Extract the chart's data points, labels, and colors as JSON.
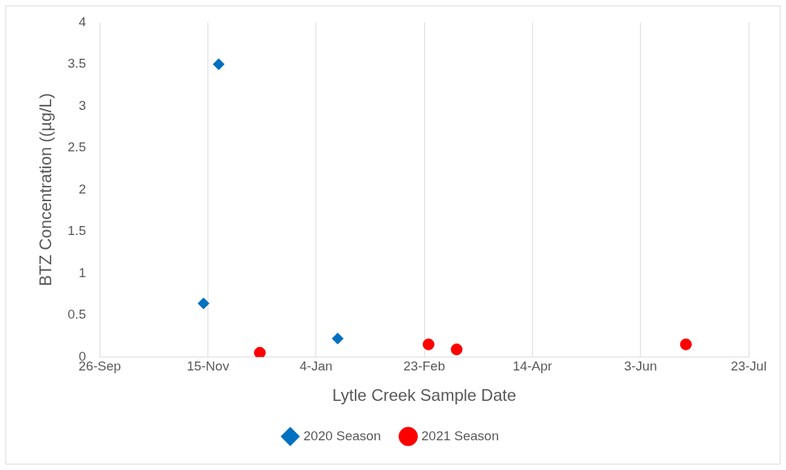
{
  "chart_data": {
    "type": "scatter",
    "xlabel": "Lytle Creek Sample Date",
    "ylabel": "BTZ Concentration ((µg/L)",
    "xlim": [
      "2020-09-26",
      "2021-07-23"
    ],
    "xticks": [
      {
        "value": "2020-09-26",
        "label": "26-Sep"
      },
      {
        "value": "2020-11-15",
        "label": "15-Nov"
      },
      {
        "value": "2021-01-04",
        "label": "4-Jan"
      },
      {
        "value": "2021-02-23",
        "label": "23-Feb"
      },
      {
        "value": "2021-04-14",
        "label": "14-Apr"
      },
      {
        "value": "2021-06-03",
        "label": "3-Jun"
      },
      {
        "value": "2021-07-23",
        "label": "23-Jul"
      }
    ],
    "ylim": [
      0,
      4
    ],
    "yticks": [
      0,
      0.5,
      1,
      1.5,
      2,
      2.5,
      3,
      3.5,
      4
    ],
    "grid": "x",
    "legend": "bottom",
    "series": [
      {
        "name": "2020 Season",
        "color": "#0070c0",
        "marker": "diamond",
        "x": [
          "2020-11-13",
          "2020-11-20",
          "2021-01-14"
        ],
        "values": [
          0.64,
          3.5,
          0.22
        ]
      },
      {
        "name": "2021 Season",
        "color": "#ff0000",
        "marker": "circle",
        "x": [
          "2020-12-09",
          "2021-02-25",
          "2021-03-10",
          "2021-06-24"
        ],
        "values": [
          0.05,
          0.15,
          0.09,
          0.15
        ]
      }
    ]
  }
}
